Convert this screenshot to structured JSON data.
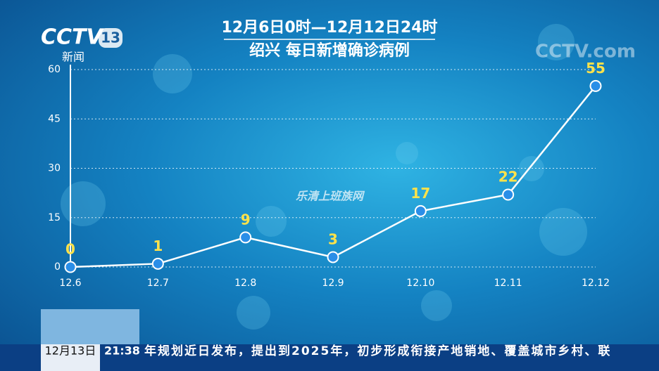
{
  "chart_data": {
    "type": "line",
    "title": "12月6日0时—12月12日24时",
    "subtitle": "绍兴 每日新增确诊病例",
    "categories": [
      "12.6",
      "12.7",
      "12.8",
      "12.9",
      "12.10",
      "12.11",
      "12.12"
    ],
    "values": [
      0,
      1,
      9,
      3,
      17,
      22,
      55
    ],
    "color": "#ffffff",
    "point_color": "#2a8ee8",
    "label_color": "#ffe24a",
    "ylim": [
      0,
      60
    ],
    "yticks": [
      0,
      15,
      30,
      45,
      60
    ],
    "grid": true
  },
  "logo": {
    "channel": "CCTV",
    "number": "13",
    "name": "新闻"
  },
  "watermark": {
    "site": "CCTV.com",
    "text": "乐清上班族网"
  },
  "ticker": {
    "date": "12月13日",
    "time": "21:38",
    "text": "年规划近日发布，提出到2025年，初步形成衔接产地销地、覆盖城市乡村、联"
  }
}
